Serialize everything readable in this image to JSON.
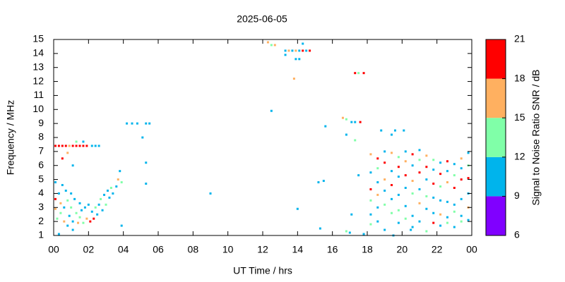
{
  "chart_data": {
    "type": "scatter",
    "title": "2025-06-05",
    "x_label": "UT Time / hrs",
    "y_label": "Frequency / MHz",
    "colorbar_label": "Signal to Noise Ratio SNR / dB",
    "xlim": [
      0,
      24
    ],
    "xticks": [
      {
        "value": 0,
        "label": "00"
      },
      {
        "value": 2,
        "label": "02"
      },
      {
        "value": 4,
        "label": "04"
      },
      {
        "value": 6,
        "label": "06"
      },
      {
        "value": 8,
        "label": "08"
      },
      10,
      12,
      14,
      16,
      18,
      20,
      22,
      {
        "value": 24,
        "label": "00"
      }
    ],
    "ylim": [
      1,
      15
    ],
    "yticks": [
      1,
      2,
      3,
      4,
      5,
      6,
      7,
      8,
      9,
      10,
      11,
      12,
      13,
      14,
      15
    ],
    "clim": [
      6,
      21
    ],
    "cticks": [
      6,
      9,
      12,
      15,
      18,
      21
    ],
    "colors": [
      "#8000ff",
      "#00b4ec",
      "#80ffa8",
      "#ffb060",
      "#ff0000"
    ],
    "x": [
      0.1,
      0.3,
      0.5,
      0.7,
      0.9,
      1.1,
      1.3,
      1.5,
      1.7,
      1.9,
      2.2,
      2.4,
      2.6,
      1.3,
      1.7,
      0.8,
      0.5,
      1.1,
      0.1,
      0.1,
      0.1,
      0.2,
      0.3,
      0.4,
      0.4,
      0.5,
      0.6,
      0.6,
      0.7,
      0.8,
      0.8,
      0.9,
      1.0,
      1.0,
      1.1,
      1.2,
      1.3,
      1.4,
      1.5,
      1.5,
      1.6,
      1.7,
      1.8,
      1.9,
      2.0,
      2.1,
      2.2,
      2.3,
      2.4,
      2.5,
      2.6,
      2.7,
      2.8,
      2.9,
      3.0,
      3.1,
      3.2,
      3.3,
      3.4,
      3.6,
      3.7,
      3.8,
      3.9,
      0.3,
      1.1,
      3.9,
      4.2,
      4.5,
      4.8,
      5.3,
      5.5,
      5.1,
      5.3,
      5.3,
      9.0,
      12.3,
      12.5,
      12.7,
      13.3,
      13.5,
      13.7,
      13.9,
      14.1,
      14.3,
      14.5,
      14.7,
      14.3,
      13.3,
      13.9,
      14.1,
      13.8,
      12.5,
      14.0,
      15.2,
      15.5,
      15.6,
      15.3,
      16.6,
      16.8,
      17.1,
      17.3,
      17.6,
      17.3,
      17.5,
      17.8,
      16.8,
      17.3,
      17.1,
      16.8,
      17.0,
      17.5,
      17.8,
      18.2,
      18.2,
      18.2,
      18.2,
      18.2,
      18.2,
      18.6,
      18.6,
      18.6,
      18.6,
      18.6,
      18.6,
      19.0,
      19.0,
      19.0,
      19.0,
      19.0,
      19.0,
      19.4,
      19.4,
      19.4,
      19.4,
      19.4,
      19.4,
      19.8,
      19.8,
      19.8,
      19.8,
      19.8,
      19.8,
      20.2,
      20.2,
      20.2,
      20.2,
      20.2,
      20.2,
      20.6,
      20.6,
      20.6,
      20.6,
      20.6,
      20.6,
      21.0,
      21.0,
      21.0,
      21.0,
      21.0,
      21.0,
      21.4,
      21.4,
      21.4,
      21.4,
      21.4,
      21.4,
      21.8,
      21.8,
      21.8,
      21.8,
      21.8,
      21.8,
      22.2,
      22.2,
      22.2,
      22.2,
      22.2,
      22.2,
      22.6,
      22.6,
      22.6,
      22.6,
      22.6,
      22.6,
      23.0,
      23.0,
      23.0,
      23.0,
      23.0,
      23.0,
      23.4,
      23.4,
      23.4,
      23.4,
      23.4,
      23.4,
      23.8,
      23.8,
      23.8,
      23.8,
      23.8,
      23.8,
      18.8,
      19.6,
      20.1,
      19.5,
      20.5
    ],
    "values": [
      7.4,
      7.4,
      7.4,
      7.4,
      7.4,
      7.4,
      7.4,
      7.4,
      7.4,
      7.4,
      7.4,
      7.4,
      7.4,
      7.7,
      7.7,
      6.9,
      6.5,
      6.0,
      4.8,
      3.6,
      2.9,
      2.2,
      4.0,
      3.3,
      2.6,
      4.6,
      3.0,
      2.0,
      4.2,
      3.5,
      1.7,
      2.4,
      4.0,
      3.0,
      2.0,
      3.6,
      2.6,
      1.9,
      3.3,
      2.3,
      2.8,
      1.9,
      3.0,
      2.2,
      3.2,
      2.0,
      2.7,
      2.2,
      3.0,
      2.5,
      3.2,
      3.6,
      2.8,
      3.9,
      3.2,
      4.2,
      3.7,
      4.4,
      4.0,
      4.5,
      5.0,
      5.6,
      4.8,
      1.1,
      1.4,
      1.7,
      9.0,
      9.0,
      9.0,
      9.0,
      9.0,
      8.0,
      6.2,
      4.7,
      4.0,
      14.8,
      14.6,
      14.6,
      14.2,
      14.2,
      14.2,
      14.2,
      14.2,
      14.2,
      14.2,
      14.2,
      14.7,
      13.9,
      13.6,
      13.6,
      12.2,
      9.9,
      2.9,
      4.8,
      4.9,
      8.8,
      1.5,
      9.4,
      9.3,
      9.1,
      9.1,
      9.1,
      12.6,
      12.6,
      12.6,
      8.2,
      7.8,
      2.5,
      1.3,
      1.2,
      5.3,
      1.1,
      6.8,
      5.5,
      4.3,
      3.5,
      2.5,
      1.8,
      6.5,
      5.8,
      4.8,
      3.9,
      3.0,
      2.0,
      7.0,
      6.2,
      5.0,
      4.2,
      3.2,
      1.4,
      6.9,
      5.6,
      4.6,
      3.6,
      2.6,
      8.2,
      6.6,
      5.9,
      5.2,
      3.9,
      2.8,
      1.9,
      7.0,
      6.3,
      5.3,
      4.4,
      3.1,
      2.2,
      6.8,
      6.0,
      4.9,
      4.0,
      2.4,
      1.6,
      7.1,
      6.4,
      5.5,
      4.3,
      3.3,
      2.0,
      6.7,
      5.9,
      5.0,
      3.8,
      2.9,
      1.3,
      6.4,
      5.7,
      4.7,
      3.7,
      2.6,
      1.9,
      6.2,
      5.4,
      4.5,
      3.5,
      2.5,
      1.7,
      6.3,
      5.6,
      4.8,
      3.4,
      2.3,
      1.9,
      6.1,
      5.3,
      4.4,
      3.2,
      2.7,
      1.6,
      6.5,
      5.8,
      5.0,
      3.6,
      2.4,
      2.0,
      6.9,
      6.0,
      5.1,
      4.0,
      3.0,
      2.1,
      8.5,
      8.5,
      8.5,
      1.0,
      1.4
    ],
    "snr": [
      19,
      19,
      20,
      19,
      17,
      19,
      19,
      20,
      19,
      19,
      10,
      10,
      10,
      14,
      10,
      16,
      19,
      10,
      10,
      19,
      16,
      13,
      10,
      16,
      13,
      10,
      10,
      16,
      10,
      13,
      10,
      10,
      10,
      13,
      10,
      10,
      13,
      16,
      10,
      13,
      10,
      13,
      10,
      16,
      10,
      19,
      10,
      19,
      13,
      10,
      10,
      13,
      10,
      10,
      13,
      10,
      10,
      13,
      10,
      10,
      16,
      10,
      13,
      10,
      10,
      10,
      10,
      10,
      10,
      10,
      10,
      10,
      10,
      10,
      10,
      16,
      13,
      16,
      10,
      16,
      10,
      15,
      10,
      19,
      10,
      19,
      10,
      10,
      10,
      10,
      16,
      10,
      10,
      10,
      10,
      10,
      10,
      16,
      13,
      10,
      10,
      19,
      19,
      13,
      19,
      10,
      13,
      10,
      13,
      10,
      10,
      10,
      16,
      10,
      19,
      13,
      10,
      13,
      19,
      13,
      10,
      16,
      10,
      10,
      10,
      19,
      16,
      10,
      13,
      10,
      16,
      10,
      19,
      10,
      13,
      10,
      13,
      19,
      10,
      10,
      13,
      10,
      10,
      16,
      19,
      10,
      10,
      13,
      19,
      10,
      16,
      13,
      10,
      10,
      10,
      13,
      19,
      10,
      16,
      10,
      16,
      19,
      10,
      13,
      10,
      13,
      13,
      10,
      19,
      10,
      10,
      19,
      10,
      19,
      13,
      10,
      16,
      10,
      19,
      10,
      16,
      10,
      10,
      13,
      10,
      13,
      19,
      10,
      13,
      10,
      16,
      10,
      19,
      10,
      10,
      13,
      10,
      13,
      19,
      10,
      16,
      10,
      10,
      10,
      10,
      10,
      10
    ]
  }
}
